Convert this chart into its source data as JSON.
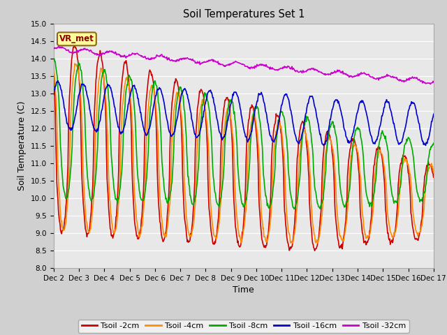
{
  "title": "Soil Temperatures Set 1",
  "xlabel": "Time",
  "ylabel": "Soil Temperature (C)",
  "ylim": [
    8.0,
    15.0
  ],
  "yticks": [
    8.0,
    8.5,
    9.0,
    9.5,
    10.0,
    10.5,
    11.0,
    11.5,
    12.0,
    12.5,
    13.0,
    13.5,
    14.0,
    14.5,
    15.0
  ],
  "xtick_labels": [
    "Dec 2",
    "Dec 3",
    "Dec 4",
    "Dec 5",
    "Dec 6",
    "Dec 7",
    "Dec 8",
    "Dec 9",
    "Dec 10",
    "Dec 11",
    "Dec 12",
    "Dec 13",
    "Dec 14",
    "Dec 15",
    "Dec 16",
    "Dec 17"
  ],
  "colors": {
    "Tsoil_2cm": "#cc0000",
    "Tsoil_4cm": "#ff8c00",
    "Tsoil_8cm": "#00aa00",
    "Tsoil_16cm": "#0000cc",
    "Tsoil_32cm": "#cc00cc"
  },
  "legend_labels": [
    "Tsoil -2cm",
    "Tsoil -4cm",
    "Tsoil -8cm",
    "Tsoil -16cm",
    "Tsoil -32cm"
  ],
  "annotation": "VR_met",
  "fig_facecolor": "#d0d0d0",
  "ax_facecolor": "#e8e8e8",
  "grid_color": "white",
  "linewidth": 1.2,
  "n_days": 15,
  "n_per_day": 48
}
